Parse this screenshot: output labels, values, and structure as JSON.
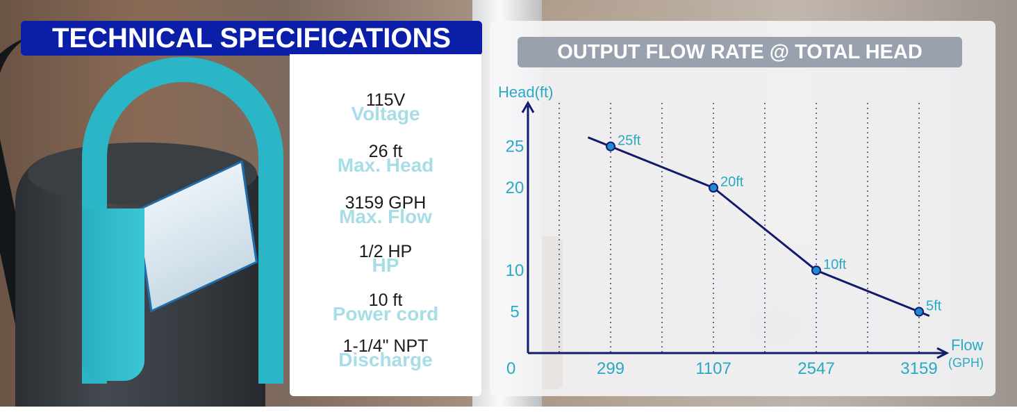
{
  "page": {
    "title": "TECHNICAL SPECIFICATIONS"
  },
  "specs": [
    {
      "label": "Voltage",
      "value": "115V"
    },
    {
      "label": "Max. Head",
      "value": "26 ft"
    },
    {
      "label": "Max. Flow",
      "value": "3159 GPH"
    },
    {
      "label": "HP",
      "value": "1/2 HP"
    },
    {
      "label": "Power cord",
      "value": "10 ft"
    },
    {
      "label": "Discharge",
      "value": "1-1/4\" NPT"
    }
  ],
  "colors": {
    "banner": "#0a1ea8",
    "accent": "#28a9c4",
    "curve": "#121a6e",
    "point": "#1f8bd0"
  },
  "chart_data": {
    "type": "line",
    "title": "OUTPUT FLOW RATE @ TOTAL HEAD",
    "ylabel": "Head(ft)",
    "xlabel": "Flow",
    "xunit": "(GPH)",
    "origin_label": "0",
    "x_ticks": [
      "299",
      "1107",
      "2547",
      "3159"
    ],
    "y_ticks": [
      "5",
      "10",
      "20",
      "25"
    ],
    "y_tick_values": [
      5,
      10,
      20,
      25
    ],
    "ylim": [
      0,
      28
    ],
    "grid": "vertical dotted",
    "series": [
      {
        "points": [
          {
            "x_index": 0,
            "y": 25,
            "label": "25ft"
          },
          {
            "x_index": 1,
            "y": 20,
            "label": "20ft"
          },
          {
            "x_index": 2,
            "y": 10,
            "label": "10ft"
          },
          {
            "x_index": 3,
            "y": 5,
            "label": "5ft"
          }
        ]
      }
    ]
  }
}
